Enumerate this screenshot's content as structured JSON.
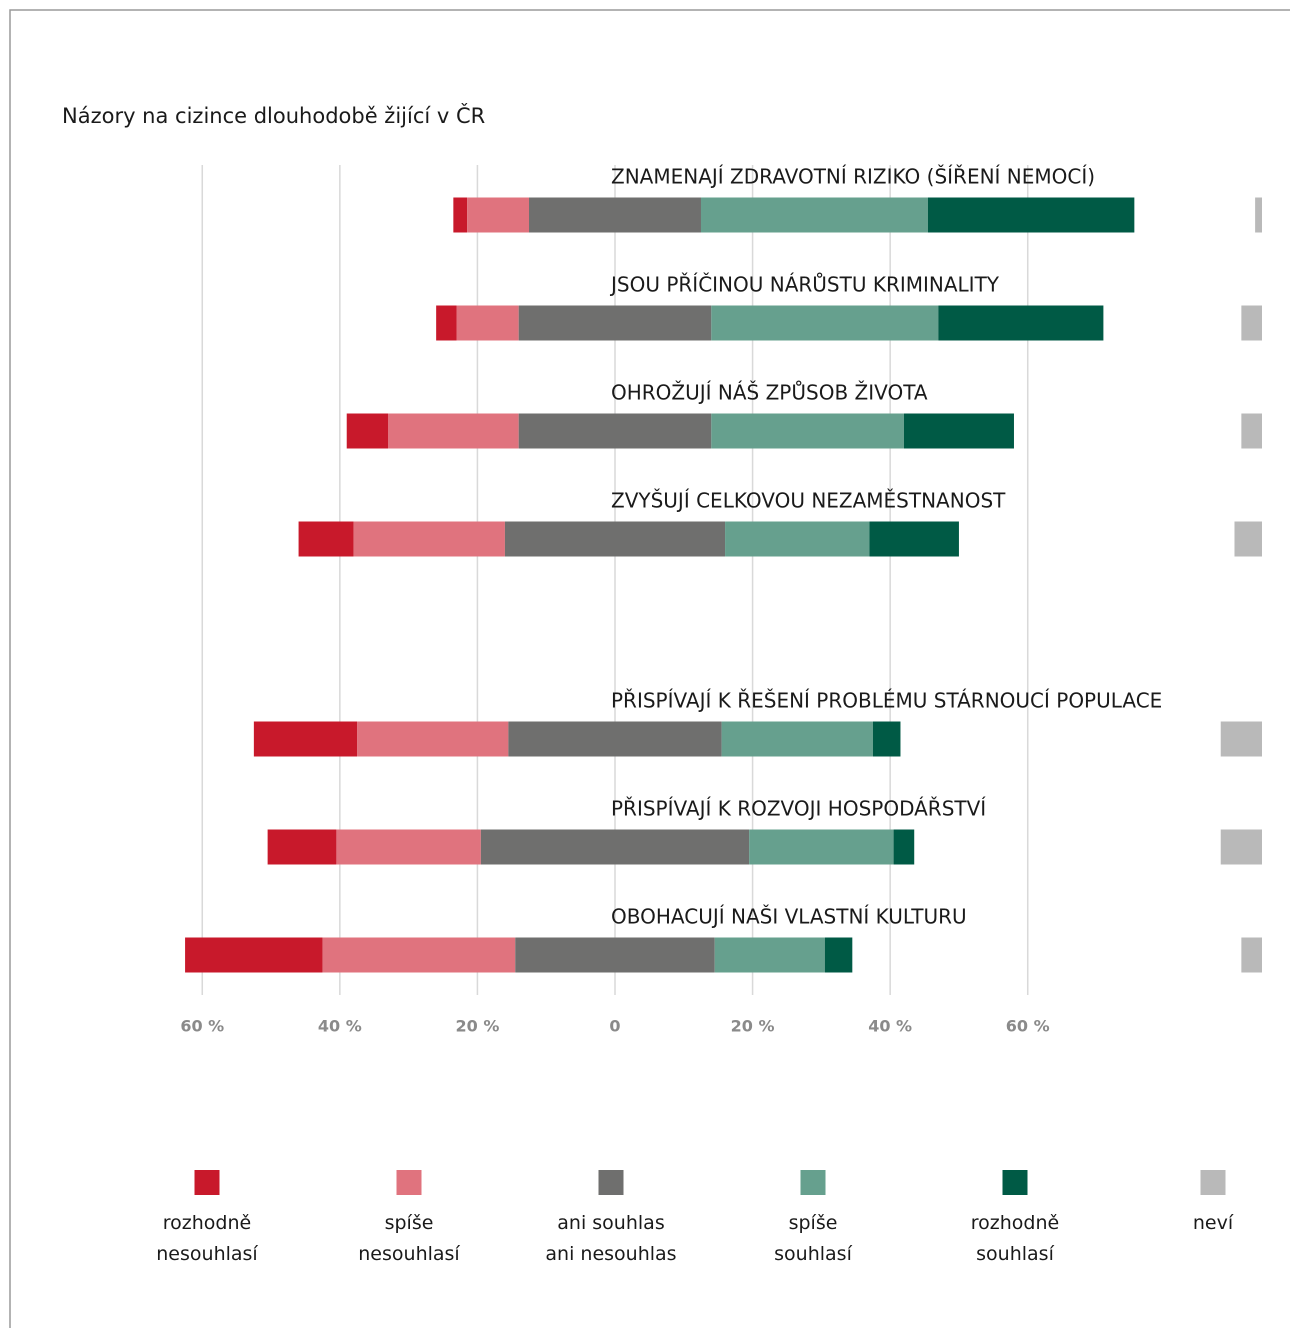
{
  "chart_data": {
    "type": "diverging-bar",
    "title": "Názory na cizince dlouhodobě žijící v ČR",
    "categories": [
      "ZNAMENAJÍ ZDRAVOTNÍ RIZIKO (ŠÍŘENÍ NEMOCÍ)",
      "JSOU PŘÍČINOU NÁRŮSTU KRIMINALITY",
      "OHROŽUJÍ NÁŠ ZPŮSOB ŽIVOTA",
      "ZVYŠUJÍ CELKOVOU NEZAMĚSTNANOST",
      "PŘISPÍVAJÍ K ŘEŠENÍ PROBLÉMU STÁRNOUCÍ POPULACE",
      "PŘISPÍVAJÍ K ROZVOJI HOSPODÁŘSTVÍ",
      "OBOHACUJÍ NAŠI VLASTNÍ KULTURU"
    ],
    "series": [
      {
        "name": "rozhodně\nnesouhlasí",
        "color": "#c8192b",
        "values": [
          2,
          3,
          6,
          8,
          15,
          10,
          20
        ]
      },
      {
        "name": "spíše\nnesouhlasí",
        "color": "#e0737e",
        "values": [
          9,
          9,
          19,
          22,
          22,
          21,
          28
        ]
      },
      {
        "name": "ani souhlas\nani nesouhlas",
        "color": "#6f6f6e",
        "values": [
          25,
          28,
          28,
          32,
          31,
          39,
          29
        ]
      },
      {
        "name": "spíše\nsouhlasí",
        "color": "#66a08e",
        "values": [
          33,
          33,
          28,
          21,
          22,
          21,
          16
        ]
      },
      {
        "name": "rozhodně\nsouhlasí",
        "color": "#005a45",
        "values": [
          30,
          24,
          16,
          13,
          4,
          3,
          4
        ]
      },
      {
        "name": "neví",
        "color": "#b9b9b9",
        "values": [
          1,
          3,
          3,
          4,
          6,
          6,
          3
        ]
      }
    ],
    "xlim": [
      -66,
      66
    ],
    "xticks": [
      {
        "value": -60,
        "label": "60 %"
      },
      {
        "value": -40,
        "label": "40 %"
      },
      {
        "value": -20,
        "label": "20 %"
      },
      0,
      {
        "value": 20,
        "label": "20 %"
      },
      {
        "value": 40,
        "label": "40 %"
      },
      {
        "value": 60,
        "label": "60 %"
      }
    ],
    "grid": true
  }
}
